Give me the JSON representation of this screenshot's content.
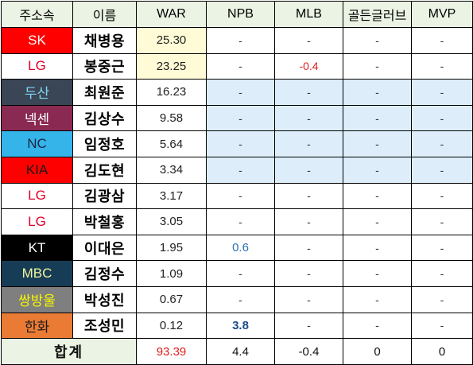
{
  "headers": [
    "주소속",
    "이름",
    "WAR",
    "NPB",
    "MLB",
    "골든글러브",
    "MVP"
  ],
  "rows": [
    {
      "team": "SK",
      "team_bg": "#ff0000",
      "team_fg": "#ffffff",
      "name": "채병용",
      "war": "25.30",
      "npb": "-",
      "mlb": "-",
      "gg": "-",
      "mvp": "-"
    },
    {
      "team": "LG",
      "team_bg": "#ffffff",
      "team_fg": "#e0002a",
      "name": "봉중근",
      "war": "23.25",
      "npb": "-",
      "mlb": "-0.4",
      "gg": "-",
      "mvp": "-"
    },
    {
      "team": "두산",
      "team_bg": "#3a4656",
      "team_fg": "#7fd6f2",
      "name": "최원준",
      "war": "16.23",
      "npb": "-",
      "mlb": "-",
      "gg": "-",
      "mvp": "-"
    },
    {
      "team": "넥센",
      "team_bg": "#8a2a52",
      "team_fg": "#ffffff",
      "name": "김상수",
      "war": "9.58",
      "npb": "-",
      "mlb": "-",
      "gg": "-",
      "mvp": "-"
    },
    {
      "team": "NC",
      "team_bg": "#35b4ea",
      "team_fg": "#1a2640",
      "name": "임정호",
      "war": "5.64",
      "npb": "-",
      "mlb": "-",
      "gg": "-",
      "mvp": "-"
    },
    {
      "team": "KIA",
      "team_bg": "#ff0000",
      "team_fg": "#1a1a1a",
      "name": "김도현",
      "war": "3.34",
      "npb": "-",
      "mlb": "-",
      "gg": "-",
      "mvp": "-"
    },
    {
      "team": "LG",
      "team_bg": "#ffffff",
      "team_fg": "#e0002a",
      "name": "김광삼",
      "war": "3.17",
      "npb": "-",
      "mlb": "-",
      "gg": "-",
      "mvp": "-"
    },
    {
      "team": "LG",
      "team_bg": "#ffffff",
      "team_fg": "#e0002a",
      "name": "박철홍",
      "war": "3.05",
      "npb": "-",
      "mlb": "-",
      "gg": "-",
      "mvp": "-"
    },
    {
      "team": "KT",
      "team_bg": "#000000",
      "team_fg": "#ffffff",
      "name": "이대은",
      "war": "1.95",
      "npb": "0.6",
      "mlb": "-",
      "gg": "-",
      "mvp": "-"
    },
    {
      "team": "MBC",
      "team_bg": "#163d55",
      "team_fg": "#f4f2a0",
      "name": "김정수",
      "war": "1.09",
      "npb": "-",
      "mlb": "-",
      "gg": "-",
      "mvp": "-"
    },
    {
      "team": "쌍방울",
      "team_bg": "#7f7f7f",
      "team_fg": "#f5f500",
      "name": "박성진",
      "war": "0.67",
      "npb": "-",
      "mlb": "-",
      "gg": "-",
      "mvp": "-"
    },
    {
      "team": "한화",
      "team_bg": "#ea7b34",
      "team_fg": "#1a1a1a",
      "name": "조성민",
      "war": "0.12",
      "npb": "3.8",
      "mlb": "-",
      "gg": "-",
      "mvp": "-"
    }
  ],
  "total": {
    "label": "합계",
    "war": "93.39",
    "npb": "4.4",
    "mlb": "-0.4",
    "gg": "0",
    "mvp": "0"
  }
}
